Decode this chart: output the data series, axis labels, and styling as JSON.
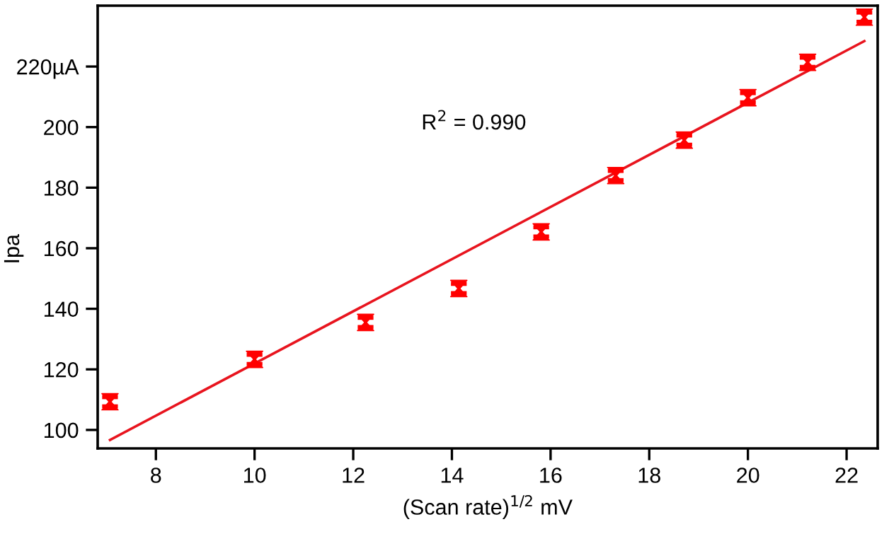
{
  "chart_data": {
    "type": "scatter",
    "xlabel": "(Scan rate)$^{1/2}$ mV",
    "ylabel": "Ipa",
    "annotations": [
      "R$^{2}$ = 0.990"
    ],
    "xlim": [
      6.82,
      22.63
    ],
    "ylim": [
      93.9,
      240.1
    ],
    "xticks": [
      8,
      10,
      12,
      14,
      16,
      18,
      20,
      22
    ],
    "yticks": [
      100,
      120,
      140,
      160,
      180,
      200,
      {
        "value": 220,
        "label": "220µA"
      }
    ],
    "grid": false,
    "legend": false,
    "series": [
      {
        "color": "#ff0000",
        "x": [
          7.07,
          10,
          12.25,
          14.14,
          15.81,
          17.32,
          18.71,
          20,
          21.21,
          22.36
        ],
        "values": [
          109.3,
          123.3,
          135.5,
          146.7,
          165.4,
          184,
          195.7,
          209.7,
          221.4,
          236.3
        ],
        "errors": [
          1.5,
          1.5,
          1.5,
          1.5,
          1.5,
          1.5,
          1.5,
          1.5,
          1.5,
          1.5
        ]
      },
      {
        "type": "line",
        "color": "#e8141e",
        "x": [
          7.07,
          22.36
        ],
        "values": [
          96.7,
          228.4
        ],
        "line_style": "solid"
      }
    ]
  }
}
